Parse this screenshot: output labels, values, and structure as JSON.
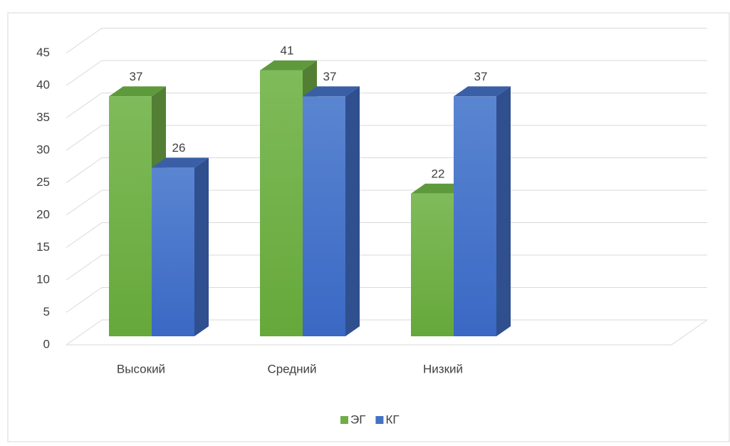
{
  "chart_data": {
    "type": "bar3d",
    "categories": [
      "Высокий",
      "Средний",
      "Низкий"
    ],
    "series": [
      {
        "name": "ЭГ",
        "color": "#70ad47",
        "values": [
          37,
          41,
          22
        ]
      },
      {
        "name": "КГ",
        "color": "#4472c4",
        "values": [
          26,
          37,
          37
        ]
      }
    ],
    "ylim": [
      0,
      45
    ],
    "yticks": [
      0,
      5,
      10,
      15,
      20,
      25,
      30,
      35,
      40,
      45
    ],
    "grid": true,
    "legend": "bottom"
  }
}
